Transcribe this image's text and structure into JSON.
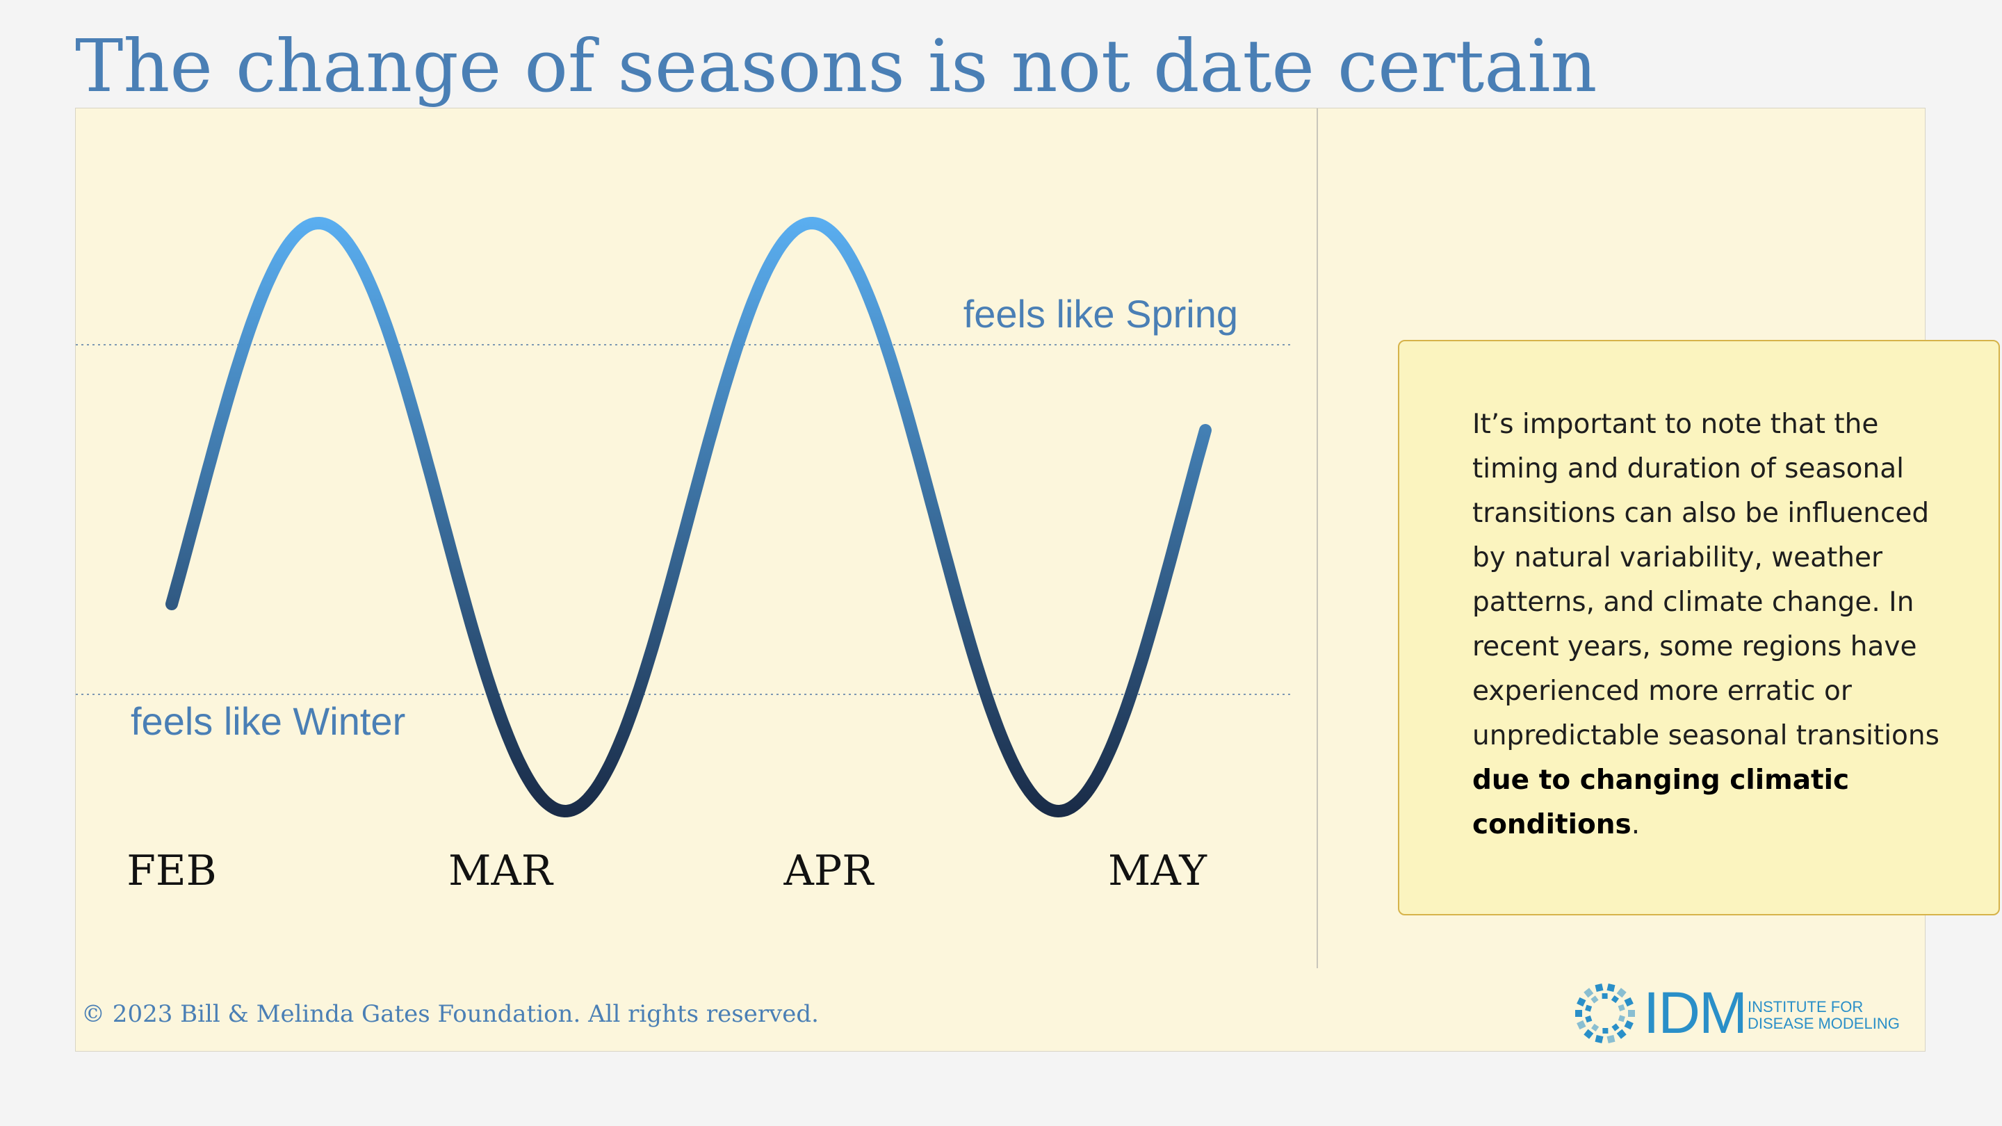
{
  "title": "The change of seasons is not date certain",
  "diagram": {
    "spring_label": "feels like Spring",
    "winter_label": "feels like Winter",
    "months": [
      "FEB",
      "MAR",
      "APR",
      "MAY"
    ],
    "wave_gradient": {
      "top": "#5aaef0",
      "bottom": "#1a2c48"
    },
    "reference_line_color": "#7d98b3",
    "label_color": "#4a7fb5"
  },
  "note": {
    "text_regular": "It’s important to note that the timing and duration of seasonal transitions can also be influenced by natural variability, weather patterns, and climate change. In recent years, some regions have experienced more erratic or unpredictable seasonal transitions ",
    "text_bold": "due to changing climatic conditions",
    "text_end": "."
  },
  "footer": {
    "copyright": "© 2023 Bill & Melinda Gates Foundation. All rights reserved.",
    "logo": {
      "abbrev": "IDM",
      "name_line1": "INSTITUTE FOR",
      "name_line2": "DISEASE MODELING",
      "color": "#2a8fc8"
    }
  }
}
